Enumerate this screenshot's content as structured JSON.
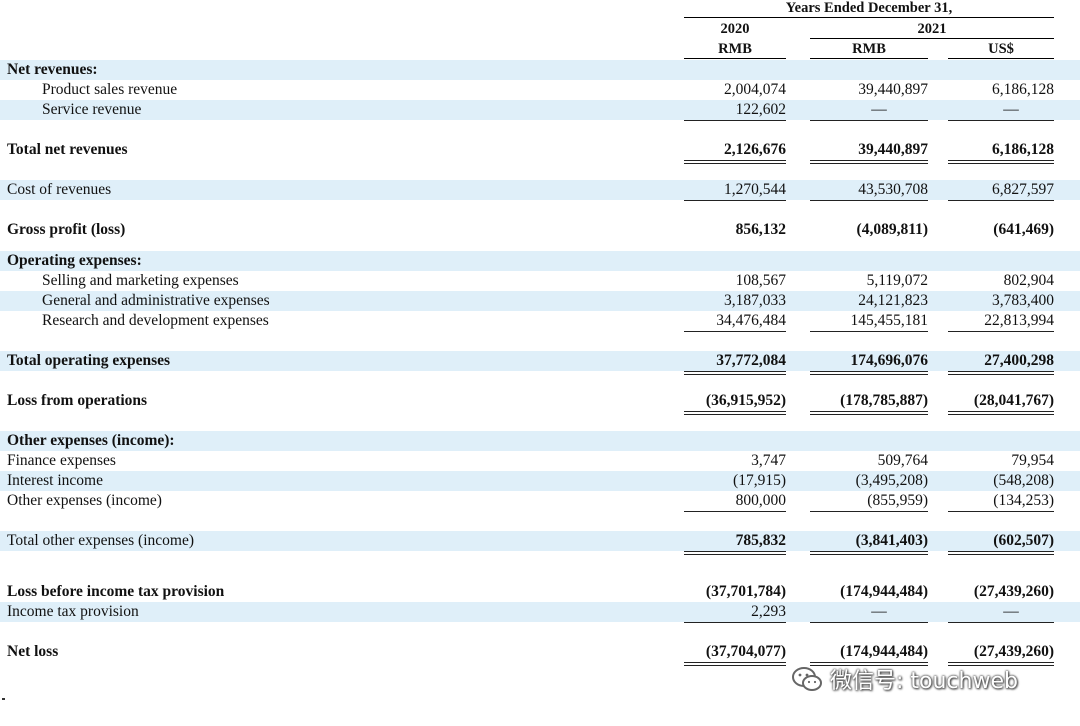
{
  "header": {
    "period_title": "Years Ended December 31,",
    "years": [
      "2020",
      "2021"
    ],
    "currencies": [
      "RMB",
      "RMB",
      "US$"
    ]
  },
  "rows": [
    {
      "label": "Net revenues:",
      "values": [
        "",
        "",
        ""
      ],
      "bold": true,
      "shade": true,
      "indent": 0
    },
    {
      "label": "Product sales revenue",
      "values": [
        "2,004,074",
        "39,440,897",
        "6,186,128"
      ],
      "bold": false,
      "shade": false,
      "indent": 1
    },
    {
      "label": "Service revenue",
      "values": [
        "122,602",
        "—",
        "—"
      ],
      "bold": false,
      "shade": true,
      "indent": 1
    },
    {
      "label": "Total net revenues",
      "values": [
        "2,126,676",
        "39,440,897",
        "6,186,128"
      ],
      "bold": true,
      "shade": false,
      "indent": 0
    },
    {
      "label": "Cost of revenues",
      "values": [
        "1,270,544",
        "43,530,708",
        "6,827,597"
      ],
      "bold": false,
      "shade": true,
      "indent": 0
    },
    {
      "label": "Gross profit (loss)",
      "values": [
        "856,132",
        "(4,089,811)",
        "(641,469)"
      ],
      "bold": true,
      "shade": false,
      "indent": 0
    },
    {
      "label": "Operating expenses:",
      "values": [
        "",
        "",
        ""
      ],
      "bold": true,
      "shade": true,
      "indent": 0
    },
    {
      "label": "Selling and marketing expenses",
      "values": [
        "108,567",
        "5,119,072",
        "802,904"
      ],
      "bold": false,
      "shade": false,
      "indent": 1
    },
    {
      "label": "General and administrative expenses",
      "values": [
        "3,187,033",
        "24,121,823",
        "3,783,400"
      ],
      "bold": false,
      "shade": true,
      "indent": 1
    },
    {
      "label": "Research and development expenses",
      "values": [
        "34,476,484",
        "145,455,181",
        "22,813,994"
      ],
      "bold": false,
      "shade": false,
      "indent": 1
    },
    {
      "label": "Total operating expenses",
      "values": [
        "37,772,084",
        "174,696,076",
        "27,400,298"
      ],
      "bold": true,
      "shade": true,
      "indent": 0
    },
    {
      "label": "Loss from operations",
      "values": [
        "(36,915,952)",
        "(178,785,887)",
        "(28,041,767)"
      ],
      "bold": true,
      "shade": false,
      "indent": 0
    },
    {
      "label": "Other expenses (income):",
      "values": [
        "",
        "",
        ""
      ],
      "bold": true,
      "shade": true,
      "indent": 0
    },
    {
      "label": "Finance expenses",
      "values": [
        "3,747",
        "509,764",
        "79,954"
      ],
      "bold": false,
      "shade": false,
      "indent": 0
    },
    {
      "label": "Interest income",
      "values": [
        "(17,915)",
        "(3,495,208)",
        "(548,208)"
      ],
      "bold": false,
      "shade": true,
      "indent": 0
    },
    {
      "label": "Other expenses (income)",
      "values": [
        "800,000",
        "(855,959)",
        "(134,253)"
      ],
      "bold": false,
      "shade": false,
      "indent": 0
    },
    {
      "label": "Total other expenses (income)",
      "values": [
        "785,832",
        "(3,841,403)",
        "(602,507)"
      ],
      "bold": false,
      "shade": true,
      "indent": 0,
      "bold_values": true
    },
    {
      "label": "Loss before income tax provision",
      "values": [
        "(37,701,784)",
        "(174,944,484)",
        "(27,439,260)"
      ],
      "bold": true,
      "shade": false,
      "indent": 0
    },
    {
      "label": "Income tax provision",
      "values": [
        "2,293",
        "—",
        "—"
      ],
      "bold": false,
      "shade": true,
      "indent": 0
    },
    {
      "label": "Net loss",
      "values": [
        "(37,704,077)",
        "(174,944,484)",
        "(27,439,260)"
      ],
      "bold": true,
      "shade": false,
      "indent": 0
    }
  ],
  "watermark": {
    "text": "微信号: touchweb",
    "icon": "wechat-icon"
  }
}
